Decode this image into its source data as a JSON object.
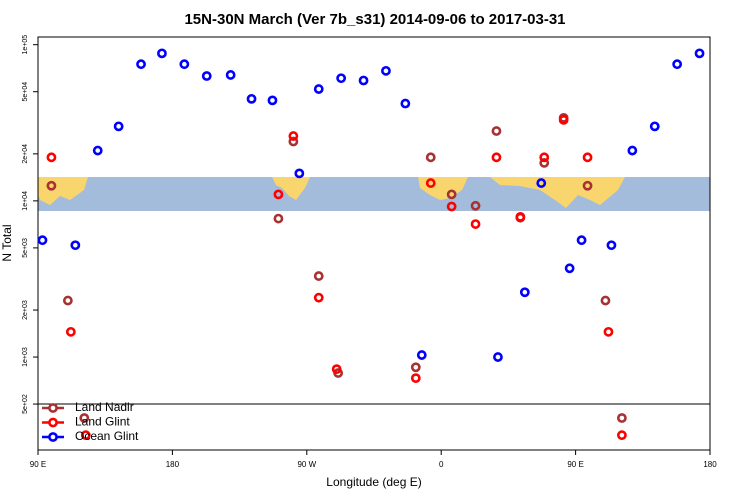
{
  "chart_data": {
    "type": "scatter",
    "title": "15N-30N March (Ver 7b_s31)   2014-09-06 to 2017-03-31",
    "x_label": "Longitude (deg E)",
    "y_label": "N Total",
    "xlim": [
      90,
      540
    ],
    "xticks": [
      {
        "value": 90,
        "label": "90 E"
      },
      180,
      {
        "value": 270,
        "label": "90 W"
      },
      {
        "value": 360,
        "label": "0"
      },
      {
        "value": 450,
        "label": "90 E"
      },
      {
        "value": 540,
        "label": "180"
      }
    ],
    "ylim": [
      254,
      112000
    ],
    "yticks": [
      {
        "value": 500,
        "label": "5e+02"
      },
      {
        "value": 1000,
        "label": "1e+03"
      },
      {
        "value": 2000,
        "label": "2e+03"
      },
      {
        "value": 5000,
        "label": "5e+03"
      },
      {
        "value": 10000,
        "label": "1e+04"
      },
      {
        "value": 20000,
        "label": "2e+04"
      },
      {
        "value": 50000,
        "label": "5e+04"
      },
      {
        "value": 100000,
        "label": "1e+05"
      }
    ],
    "log_y": true,
    "legend": "lower left",
    "series": [
      {
        "name": "Land Nadir",
        "color": "#a83232",
        "x": [
          99,
          110,
          121,
          251,
          261,
          278,
          291,
          343,
          353,
          367,
          383,
          397,
          413,
          429,
          442,
          458,
          470,
          481
        ],
        "values": [
          12500,
          2300,
          407,
          7700,
          24000,
          3300,
          790,
          860,
          19000,
          11000,
          9300,
          28000,
          7800,
          17500,
          34000,
          12500,
          2300,
          407
        ]
      },
      {
        "name": "Land Glint",
        "color": "#ff0000",
        "x": [
          99,
          112,
          122,
          251,
          261,
          278,
          290,
          343,
          353,
          367,
          383,
          397,
          413,
          429,
          442,
          458,
          472,
          481
        ],
        "values": [
          19000,
          1450,
          316,
          11000,
          26000,
          2400,
          837,
          733,
          13000,
          9200,
          7100,
          19000,
          7900,
          19000,
          33000,
          19000,
          1450,
          316
        ]
      },
      {
        "name": "Ocean Glint",
        "color": "#0000ff",
        "x": [
          93,
          115,
          130,
          144,
          159,
          173,
          188,
          203,
          219,
          233,
          247,
          265,
          278,
          293,
          308,
          323,
          336,
          347,
          398,
          416,
          427,
          446,
          454,
          474,
          488,
          503,
          518,
          533
        ],
        "values": [
          5600,
          5200,
          21000,
          30000,
          75000,
          88000,
          75000,
          63000,
          64000,
          45000,
          44000,
          15000,
          52000,
          61000,
          59000,
          68000,
          42000,
          1030,
          1000,
          2600,
          13000,
          3700,
          5600,
          5200,
          21000,
          30000,
          75000,
          88000
        ]
      }
    ]
  }
}
